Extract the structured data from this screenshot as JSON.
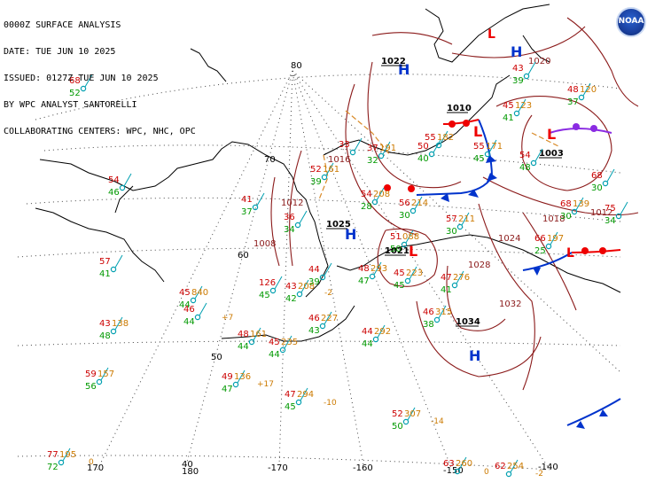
{
  "header": {
    "line1": "0000Z SURFACE ANALYSIS",
    "line2": "DATE: TUE JUN 10 2025",
    "line3": "ISSUED: 0127Z TUE JUN 10 2025",
    "line4": "BY WPC ANALYST SANTORELLI",
    "line5": "COLLABORATING CENTERS: WPC, NHC, OPC"
  },
  "graticule_labels": [
    "80",
    "70",
    "60",
    "50",
    "40",
    "170",
    "180",
    "-170",
    "-160",
    "-150",
    "-140"
  ],
  "pressure_centers": [
    {
      "type": "H",
      "value": "1022"
    },
    {
      "type": "H",
      "value": ""
    },
    {
      "type": "L",
      "value": "1010"
    },
    {
      "type": "L",
      "value": "1003"
    },
    {
      "type": "H",
      "value": "1025"
    },
    {
      "type": "L",
      "value": "1021"
    },
    {
      "type": "H",
      "value": "1034"
    },
    {
      "type": "L",
      "value": ""
    },
    {
      "type": "L",
      "value": ""
    }
  ],
  "isobar_labels": [
    "1018",
    "1024",
    "1028",
    "1032",
    "1012",
    "1016",
    "1020",
    "1008",
    "1012"
  ],
  "station_obs": [
    {
      "t": "68",
      "d": "52"
    },
    {
      "t": "54",
      "d": "46"
    },
    {
      "t": "57",
      "d": "41"
    },
    {
      "t": "41",
      "d": "37"
    },
    {
      "t": "36",
      "d": "34"
    },
    {
      "t": "33",
      "d": ""
    },
    {
      "t": "52",
      "p": "161",
      "d": "39"
    },
    {
      "t": "37",
      "p": "191",
      "d": "32"
    },
    {
      "t": "54",
      "p": "208",
      "d": "28"
    },
    {
      "t": "56",
      "p": "214",
      "d": "30"
    },
    {
      "t": "57",
      "p": "211",
      "d": "30"
    },
    {
      "t": "55",
      "p": "182",
      "d": ""
    },
    {
      "t": "50",
      "p": "",
      "d": "40"
    },
    {
      "t": "55",
      "p": "171",
      "d": "45"
    },
    {
      "t": "45",
      "p": "123",
      "d": "41"
    },
    {
      "t": "43",
      "p": "",
      "d": "39"
    },
    {
      "t": "48",
      "p": "120",
      "d": "37"
    },
    {
      "t": "54",
      "p": "",
      "d": "48"
    },
    {
      "t": "68",
      "p": "139",
      "d": "30"
    },
    {
      "t": "66",
      "p": "197",
      "d": "25"
    },
    {
      "t": "75",
      "p": "",
      "d": "34"
    },
    {
      "t": "68",
      "p": "",
      "d": "30"
    },
    {
      "t": "51",
      "p": "088",
      "d": "50"
    },
    {
      "t": "47",
      "p": "276",
      "d": "41"
    },
    {
      "t": "48",
      "p": "293",
      "d": "47"
    },
    {
      "t": "45",
      "p": "223",
      "d": "45"
    },
    {
      "t": "45",
      "p": "840",
      "d": "44"
    },
    {
      "t": "46",
      "p": "",
      "d": "44"
    },
    {
      "t": "126",
      "p": "",
      "d": "45"
    },
    {
      "t": "43",
      "p": "208",
      "d": "42"
    },
    {
      "t": "44",
      "p": "",
      "d": "39"
    },
    {
      "t": "46",
      "p": "227",
      "d": "43"
    },
    {
      "t": "48",
      "p": "161",
      "d": "44"
    },
    {
      "t": "45",
      "p": "235",
      "d": "44"
    },
    {
      "t": "43",
      "p": "138",
      "d": "48"
    },
    {
      "t": "59",
      "p": "157",
      "d": "56"
    },
    {
      "t": "49",
      "p": "136",
      "d": "47"
    },
    {
      "t": "47",
      "p": "294",
      "d": "45"
    },
    {
      "t": "44",
      "p": "292",
      "d": "44"
    },
    {
      "t": "46",
      "p": "315",
      "d": "38"
    },
    {
      "t": "52",
      "p": "307",
      "d": "50"
    },
    {
      "t": "77",
      "p": "195",
      "d": "72"
    },
    {
      "t": "63",
      "p": "260",
      "d": ""
    },
    {
      "t": "62",
      "p": "254",
      "d": ""
    }
  ],
  "pressure_tendencies": [
    "+7",
    "-2",
    "+17",
    "-10",
    "-14",
    "0",
    "0",
    "-2"
  ],
  "colors": {
    "isobar": "#8b1a1a",
    "temperature": "#cc0000",
    "dewpoint": "#009900",
    "pressure": "#cc7a00",
    "high": "#0033cc",
    "low": "#ee0000",
    "cold_front": "#0033cc",
    "warm_front": "#ee0000",
    "occluded_front": "#8a2be2",
    "trough": "#d98c2b",
    "wind": "#009fb0",
    "graticule": "#555555"
  }
}
